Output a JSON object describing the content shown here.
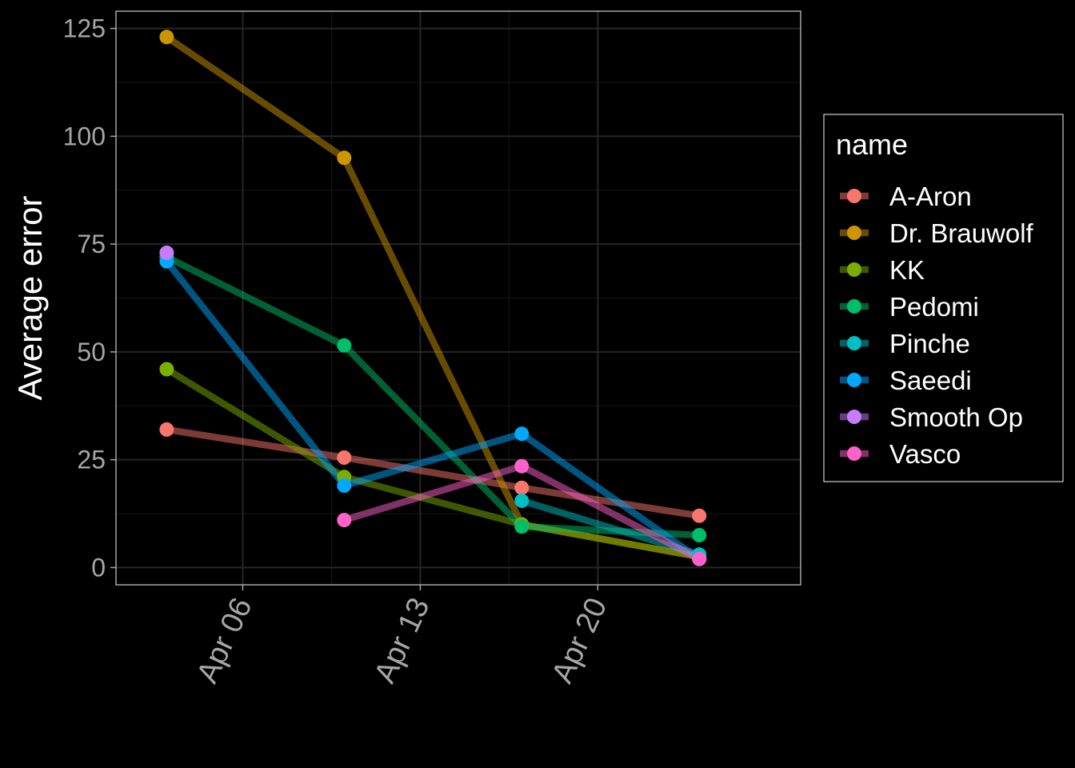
{
  "chart_data": {
    "type": "line",
    "ylabel": "Average error",
    "xlabel": "",
    "ylim": [
      -4,
      129
    ],
    "xlim": [
      "2020-04-01",
      "2020-04-28"
    ],
    "x_ticks": [
      {
        "date": "2020-04-06",
        "label": "Apr 06"
      },
      {
        "date": "2020-04-13",
        "label": "Apr 13"
      },
      {
        "date": "2020-04-20",
        "label": "Apr 20"
      }
    ],
    "y_ticks": [
      0,
      25,
      50,
      75,
      100,
      125
    ],
    "grid": true,
    "background": "#000000",
    "panel_border_color": "#cfcfcf",
    "grid_major_color": "#262626",
    "grid_minor_color": "#141414",
    "tick_label_color": "#a6a6a6",
    "axis_title_color": "#ffffff",
    "legend": {
      "title": "name",
      "placement": "right"
    },
    "series": [
      {
        "name": "A-Aron",
        "color": "#F8766D",
        "points": [
          [
            "2020-04-03",
            32
          ],
          [
            "2020-04-10",
            25.5
          ],
          [
            "2020-04-17",
            18.5
          ],
          [
            "2020-04-24",
            12
          ]
        ]
      },
      {
        "name": "Dr. Brauwolf",
        "color": "#CD9600",
        "points": [
          [
            "2020-04-03",
            123
          ],
          [
            "2020-04-10",
            95
          ],
          [
            "2020-04-17",
            10
          ],
          [
            "2020-04-24",
            2.5
          ]
        ]
      },
      {
        "name": "KK",
        "color": "#7CAE00",
        "points": [
          [
            "2020-04-03",
            46
          ],
          [
            "2020-04-10",
            21
          ],
          [
            "2020-04-17",
            10
          ],
          [
            "2020-04-24",
            2.5
          ]
        ]
      },
      {
        "name": "Pedomi",
        "color": "#00BE67",
        "points": [
          [
            "2020-04-03",
            72
          ],
          [
            "2020-04-10",
            51.5
          ],
          [
            "2020-04-17",
            9.5
          ],
          [
            "2020-04-24",
            7.5
          ]
        ]
      },
      {
        "name": "Pinche",
        "color": "#00BFC4",
        "points": [
          [
            "2020-04-17",
            15.5
          ],
          [
            "2020-04-24",
            3
          ]
        ]
      },
      {
        "name": "Saeedi",
        "color": "#00A9FF",
        "points": [
          [
            "2020-04-03",
            71
          ],
          [
            "2020-04-10",
            19
          ],
          [
            "2020-04-17",
            31
          ],
          [
            "2020-04-24",
            2
          ]
        ]
      },
      {
        "name": "Smooth Op",
        "color": "#C77CFF",
        "points": [
          [
            "2020-04-03",
            73
          ]
        ]
      },
      {
        "name": "Vasco",
        "color": "#FF61CC",
        "points": [
          [
            "2020-04-10",
            11
          ],
          [
            "2020-04-17",
            23.5
          ],
          [
            "2020-04-24",
            2
          ]
        ]
      }
    ]
  }
}
